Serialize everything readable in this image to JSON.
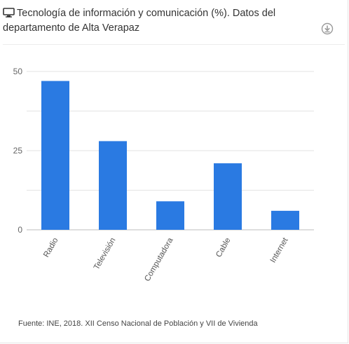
{
  "header": {
    "title": "Tecnología de información y comunicación (%). Datos del departamento de Alta Verapaz"
  },
  "icons": {
    "title_icon": "monitor-icon",
    "download_icon": "download-icon"
  },
  "colors": {
    "bar": "#2a7ae2",
    "grid": "#e3e3e3",
    "axis": "#bdbdbd"
  },
  "chart_data": {
    "type": "bar",
    "categories": [
      "Radio",
      "Televisión",
      "Computadora",
      "Cable",
      "Internet"
    ],
    "values": [
      47,
      28,
      9,
      21,
      6
    ],
    "ylim": [
      0,
      50
    ],
    "yticks": [
      0,
      25,
      50
    ],
    "grid": true,
    "legend": "none"
  },
  "footer": {
    "source": "Fuente: INE, 2018. XII Censo Nacional de Población y VII de Vivienda"
  }
}
